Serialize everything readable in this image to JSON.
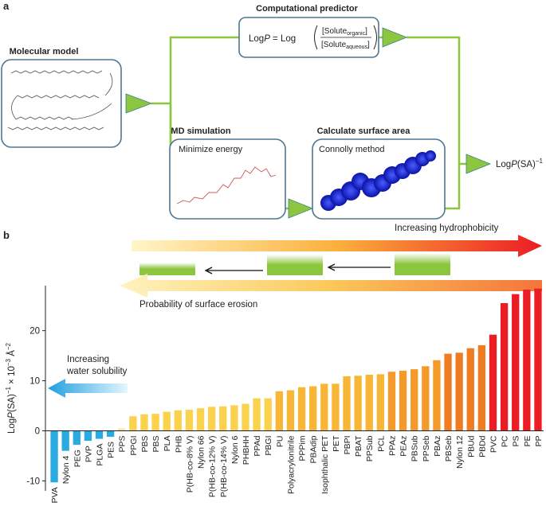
{
  "panel_a": {
    "label": "a",
    "predictor_title": "Computational predictor",
    "formula": [
      "Log",
      "P",
      " = Log",
      "[Solute",
      "organic",
      "]",
      "[Solute",
      "aqueous",
      "]"
    ],
    "model_title": "Molecular model",
    "md_title": "MD simulation",
    "md_step": "Minimize energy",
    "area_title": "Calculate surface area",
    "area_step": "Connolly method",
    "output": [
      "Log",
      "P",
      "(SA)",
      "−1"
    ]
  },
  "chart_data": {
    "type": "bar",
    "panel_label": "b",
    "y_label": [
      "Log",
      "P",
      "(SA)",
      "−1",
      " × 10",
      "−3",
      " Å",
      "−2"
    ],
    "annotations": [
      "Increasing hydrophobicity",
      "Probability of surface erosion",
      "Increasing",
      "water solubility"
    ],
    "categories": [
      "PVA",
      "Nylon 4",
      "PEG",
      "PVP",
      "PLGA",
      "PES",
      "PPS",
      "PPGI",
      "PBS",
      "PBS",
      "PLA",
      "PHB",
      "P(HB-co-8% V)",
      "Nylon 66",
      "P(HB-co-12% V)",
      "P(HB-co-14% V)",
      "Nylon 6",
      "PHBHH",
      "PPAd",
      "PBGI",
      "PU",
      "Polyacrylonitrile",
      "PPPim",
      "PBAdip",
      "Isophthalic PET",
      "PET",
      "PBPI",
      "PBAT",
      "PPSub",
      "PCL",
      "PPAz",
      "PEAz",
      "PBSub",
      "PPSeb",
      "PBAz",
      "PBSeb",
      "Nylon 12",
      "PBUd",
      "PBDd",
      "PVC",
      "PC",
      "PS",
      "PE",
      "PP"
    ],
    "values": [
      -10.3,
      -4,
      -2.8,
      -2,
      -1.6,
      -1.2,
      0.5,
      2.9,
      3.3,
      3.4,
      3.8,
      4.1,
      4.2,
      4.5,
      4.8,
      4.9,
      5.1,
      5.4,
      6.5,
      6.5,
      7.9,
      8.1,
      8.7,
      8.9,
      9.4,
      9.4,
      10.9,
      11,
      11.2,
      11.3,
      11.8,
      12,
      12.3,
      12.9,
      14.1,
      15.4,
      15.6,
      16.5,
      17.1,
      19.2,
      25.5,
      27.3,
      28.2,
      28.4
    ],
    "colors": [
      "#29abe2",
      "#29abe2",
      "#29abe2",
      "#29abe2",
      "#29abe2",
      "#29abe2",
      "#fbe7a1",
      "#fad24e",
      "#fad24e",
      "#fad24e",
      "#fad24e",
      "#fad24e",
      "#fad24e",
      "#fad24e",
      "#fad24e",
      "#fad24e",
      "#fad24e",
      "#fad24e",
      "#fad24e",
      "#fad24e",
      "#f8b637",
      "#f8b637",
      "#f8b637",
      "#f8b637",
      "#f8b637",
      "#f8b637",
      "#f8b637",
      "#f8b637",
      "#f8b637",
      "#f8b637",
      "#f49a2a",
      "#f49a2a",
      "#f49a2a",
      "#f49a2a",
      "#f49a2a",
      "#f07c22",
      "#f07c22",
      "#f07c22",
      "#f07c22",
      "#ec1c24",
      "#ec1c24",
      "#ec1c24",
      "#ec1c24",
      "#ec1c24"
    ],
    "ylim": [
      -12,
      29
    ],
    "yticks": [
      -10,
      0,
      10,
      20
    ]
  }
}
